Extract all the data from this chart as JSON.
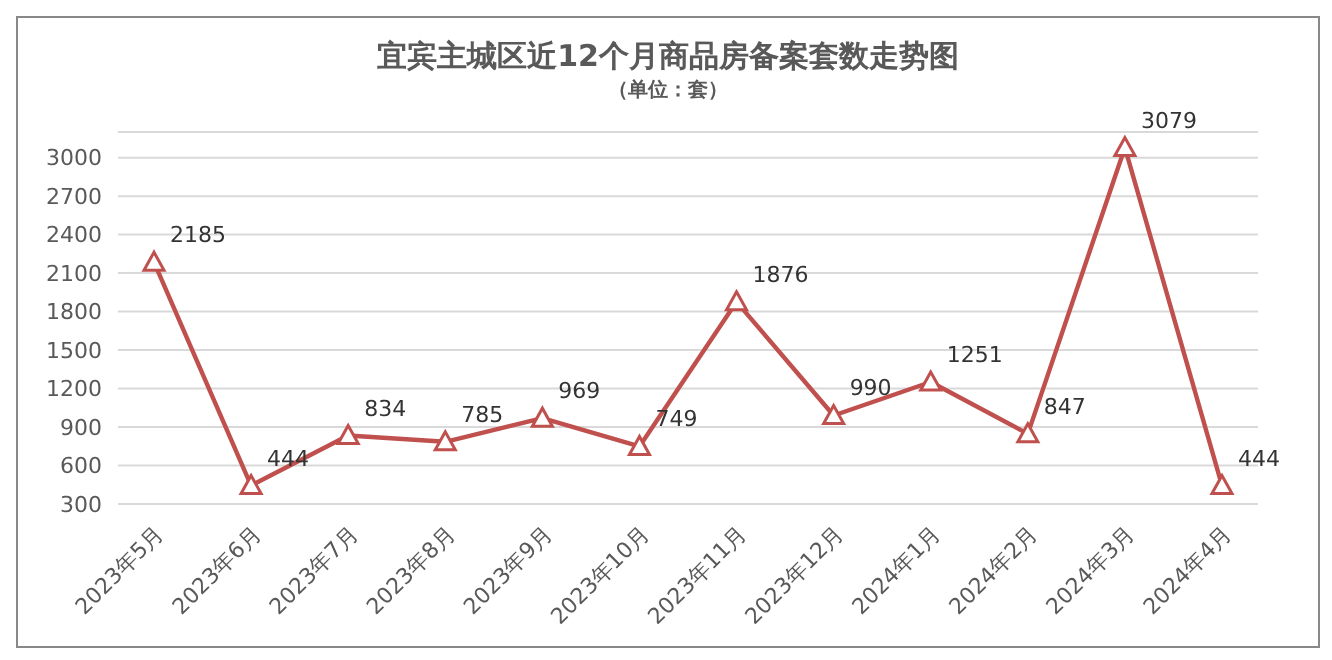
{
  "chart_data": {
    "type": "line",
    "title": "宜宾主城区近12个月商品房备案套数走势图",
    "subtitle": "（单位：套）",
    "categories": [
      "2023年5月",
      "2023年6月",
      "2023年7月",
      "2023年8月",
      "2023年9月",
      "2023年10月",
      "2023年11月",
      "2023年12月",
      "2024年1月",
      "2024年2月",
      "2024年3月",
      "2024年4月"
    ],
    "series": [
      {
        "color": "#c0504d",
        "values": [
          2185,
          444,
          834,
          785,
          969,
          749,
          1876,
          990,
          1251,
          847,
          3079,
          444
        ]
      }
    ],
    "ylim": [
      300,
      3200
    ],
    "yticks": [
      300,
      600,
      900,
      1200,
      1500,
      1800,
      2100,
      2400,
      2700,
      3000
    ],
    "grid": "y",
    "marker": "triangle",
    "line_style": "solid",
    "data_labels": true
  }
}
